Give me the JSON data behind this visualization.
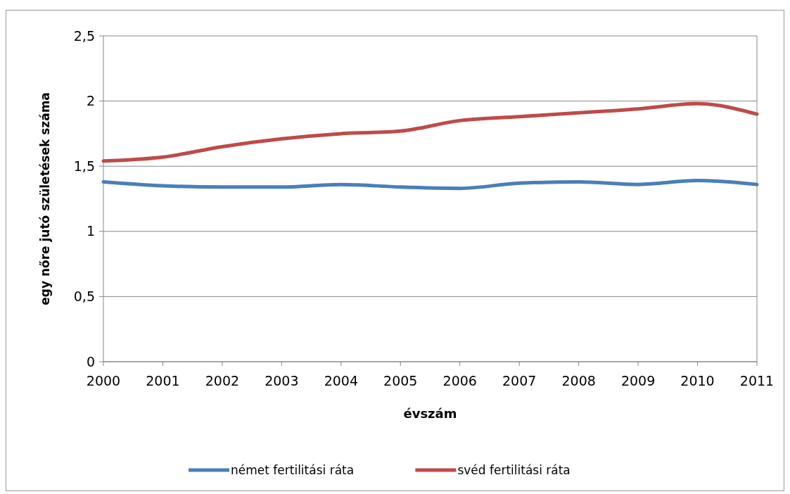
{
  "chart_data": {
    "type": "line",
    "xlabel": "évszám",
    "ylabel": "egy nőre jutó születések száma",
    "categories": [
      "2000",
      "2001",
      "2002",
      "2003",
      "2004",
      "2005",
      "2006",
      "2007",
      "2008",
      "2009",
      "2010",
      "2011"
    ],
    "series": [
      {
        "name": "német fertilitási ráta",
        "color": "#4a7ebb",
        "values": [
          1.38,
          1.35,
          1.34,
          1.34,
          1.36,
          1.34,
          1.33,
          1.37,
          1.38,
          1.36,
          1.39,
          1.36
        ]
      },
      {
        "name": "svéd fertilitási ráta",
        "color": "#be4b48",
        "values": [
          1.54,
          1.57,
          1.65,
          1.71,
          1.75,
          1.77,
          1.85,
          1.88,
          1.91,
          1.94,
          1.98,
          1.9
        ]
      }
    ],
    "ylim": [
      0,
      2.5
    ],
    "yticks": [
      0,
      {
        "value": 0.5,
        "label": "0,5"
      },
      1,
      {
        "value": 1.5,
        "label": "1,5"
      },
      2,
      {
        "value": 2.5,
        "label": "2,5"
      }
    ],
    "grid": "y",
    "legend": "bottom",
    "marker": "none",
    "line_style": "solid"
  }
}
